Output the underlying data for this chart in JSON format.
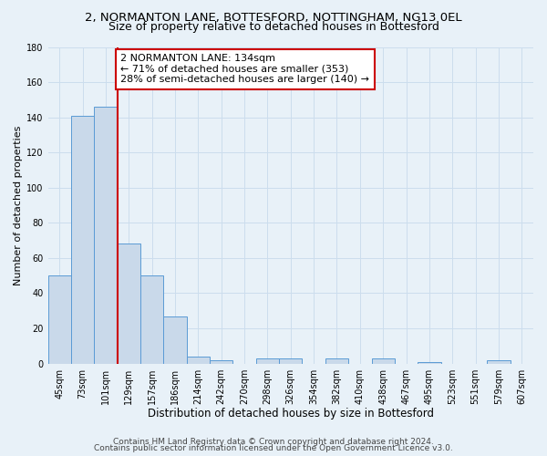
{
  "title": "2, NORMANTON LANE, BOTTESFORD, NOTTINGHAM, NG13 0EL",
  "subtitle": "Size of property relative to detached houses in Bottesford",
  "xlabel": "Distribution of detached houses by size in Bottesford",
  "ylabel": "Number of detached properties",
  "bin_labels": [
    "45sqm",
    "73sqm",
    "101sqm",
    "129sqm",
    "157sqm",
    "186sqm",
    "214sqm",
    "242sqm",
    "270sqm",
    "298sqm",
    "326sqm",
    "354sqm",
    "382sqm",
    "410sqm",
    "438sqm",
    "467sqm",
    "495sqm",
    "523sqm",
    "551sqm",
    "579sqm",
    "607sqm"
  ],
  "bar_values": [
    50,
    141,
    146,
    68,
    50,
    27,
    4,
    2,
    0,
    3,
    3,
    0,
    3,
    0,
    3,
    0,
    1,
    0,
    0,
    2,
    0
  ],
  "bar_color": "#c9d9ea",
  "bar_edge_color": "#5b9bd5",
  "grid_color": "#ccdded",
  "bg_color": "#e8f1f8",
  "vline_x_index": 3,
  "vline_color": "#cc0000",
  "annotation_text": "2 NORMANTON LANE: 134sqm\n← 71% of detached houses are smaller (353)\n28% of semi-detached houses are larger (140) →",
  "annotation_box_color": "#ffffff",
  "annotation_box_edge": "#cc0000",
  "ylim": [
    0,
    180
  ],
  "yticks": [
    0,
    20,
    40,
    60,
    80,
    100,
    120,
    140,
    160,
    180
  ],
  "footer_line1": "Contains HM Land Registry data © Crown copyright and database right 2024.",
  "footer_line2": "Contains public sector information licensed under the Open Government Licence v3.0.",
  "title_fontsize": 9.5,
  "subtitle_fontsize": 9,
  "xlabel_fontsize": 8.5,
  "ylabel_fontsize": 8,
  "tick_fontsize": 7,
  "annotation_fontsize": 8,
  "footer_fontsize": 6.5
}
